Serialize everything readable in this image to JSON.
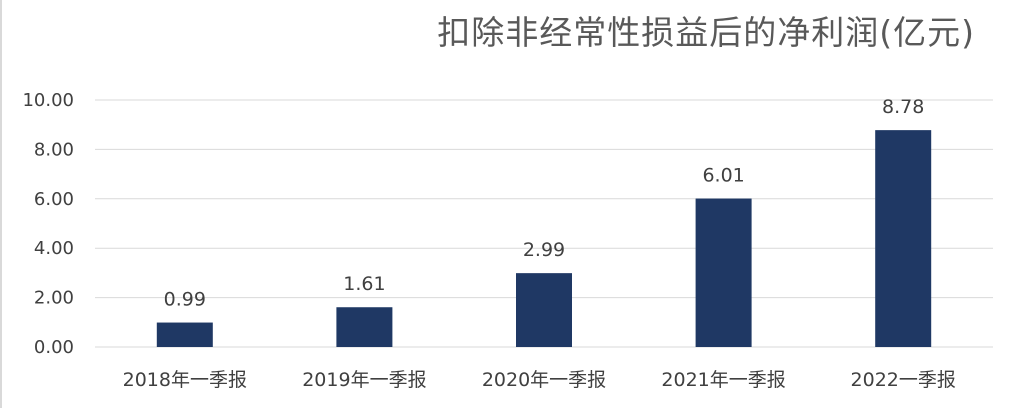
{
  "chart_data": {
    "type": "bar",
    "title": "扣除非经常性损益后的净利润(亿元)",
    "xlabel": "",
    "ylabel": "",
    "categories": [
      "2018年一季报",
      "2019年一季报",
      "2020年一季报",
      "2021年一季报",
      "2022一季报"
    ],
    "values": [
      0.99,
      1.61,
      2.99,
      6.01,
      8.78
    ],
    "data_labels": [
      "0.99",
      "1.61",
      "2.99",
      "6.01",
      "8.78"
    ],
    "ylim": [
      0,
      10
    ],
    "yticks": [
      "0.00",
      "2.00",
      "4.00",
      "6.00",
      "8.00",
      "10.00"
    ],
    "grid": true,
    "legend": "none",
    "bar_color": "#1f3864",
    "grid_color": "#d9d9d9"
  }
}
